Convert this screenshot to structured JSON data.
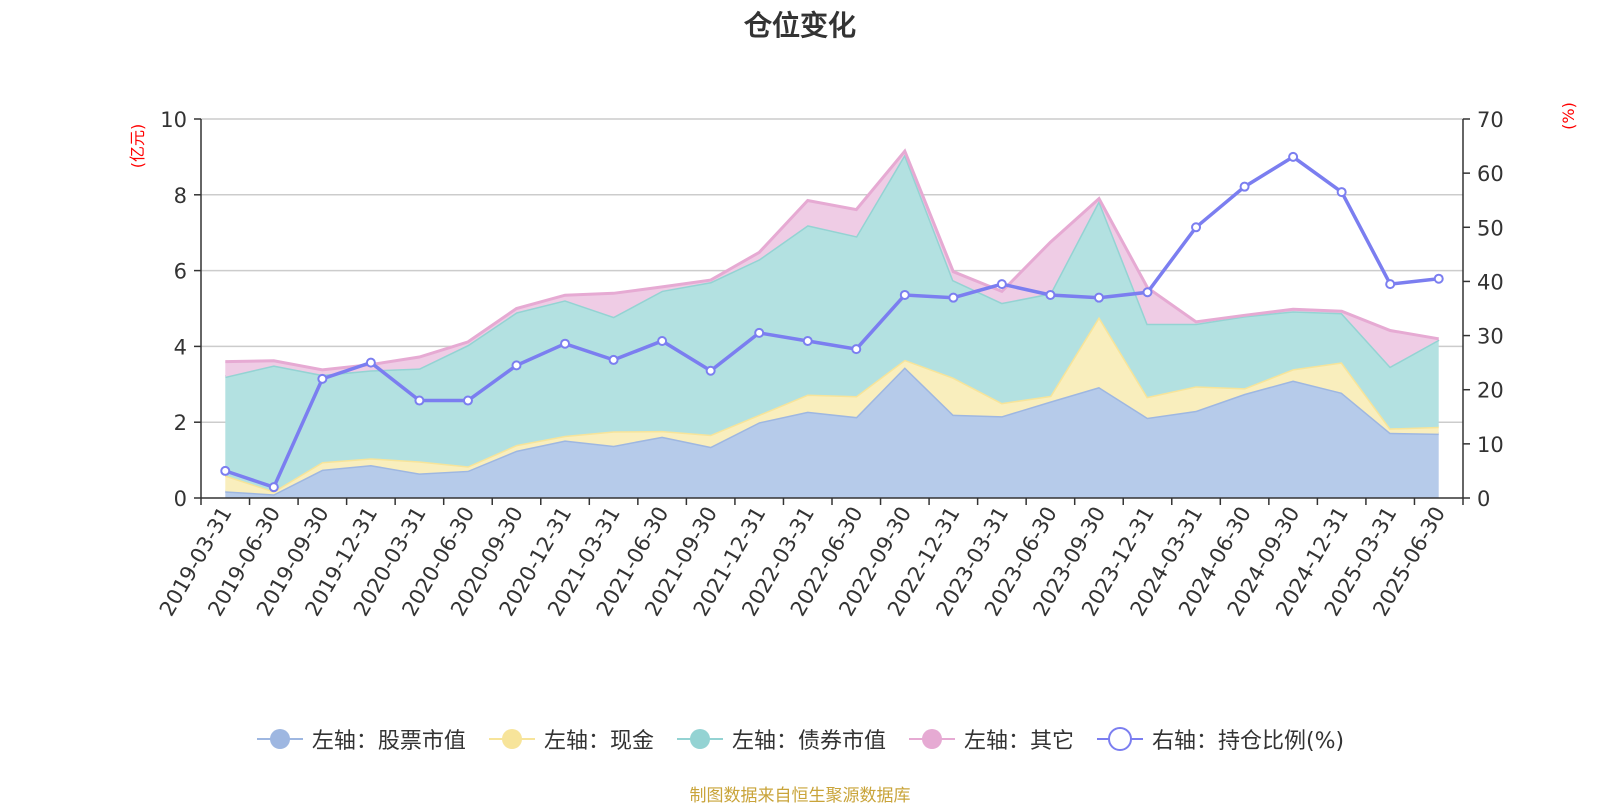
{
  "chart_data": {
    "type": "area",
    "title": "仓位变化",
    "left_unit": "(亿元)",
    "right_unit": "(%)",
    "left_ylim": [
      0,
      10
    ],
    "left_ticks": [
      "0",
      "2",
      "4",
      "6",
      "8",
      "10"
    ],
    "right_ylim": [
      0,
      70
    ],
    "right_ticks": [
      "0",
      "10",
      "20",
      "30",
      "40",
      "50",
      "60",
      "70"
    ],
    "grid": true,
    "stacked": true,
    "legend_position": "bottom",
    "categories": [
      "2019-03-31",
      "2019-06-30",
      "2019-09-30",
      "2019-12-31",
      "2020-03-31",
      "2020-06-30",
      "2020-09-30",
      "2020-12-31",
      "2021-03-31",
      "2021-06-30",
      "2021-09-30",
      "2021-12-31",
      "2022-03-31",
      "2022-06-30",
      "2022-09-30",
      "2022-12-31",
      "2023-03-31",
      "2023-06-30",
      "2023-09-30",
      "2023-12-31",
      "2024-03-31",
      "2024-06-30",
      "2024-09-30",
      "2024-12-31",
      "2025-03-31",
      "2025-06-30"
    ],
    "series": [
      {
        "name": "左轴：股票市值",
        "axis": "left",
        "kind": "area",
        "color": "#9eb7e1",
        "values": [
          0.18,
          0.1,
          0.75,
          0.87,
          0.65,
          0.72,
          1.25,
          1.52,
          1.38,
          1.62,
          1.35,
          2.0,
          2.28,
          2.14,
          3.45,
          2.2,
          2.16,
          2.55,
          2.93,
          2.12,
          2.3,
          2.75,
          3.1,
          2.78,
          1.72,
          1.7
        ]
      },
      {
        "name": "左轴：现金",
        "axis": "left",
        "kind": "area",
        "color": "#f7e49a",
        "values": [
          0.42,
          0.08,
          0.2,
          0.18,
          0.32,
          0.12,
          0.15,
          0.12,
          0.38,
          0.15,
          0.32,
          0.2,
          0.45,
          0.55,
          0.2,
          0.98,
          0.35,
          0.15,
          1.85,
          0.55,
          0.65,
          0.15,
          0.3,
          0.8,
          0.12,
          0.18
        ]
      },
      {
        "name": "左轴：债券市值",
        "axis": "left",
        "kind": "area",
        "color": "#94d3d3",
        "values": [
          2.6,
          3.32,
          2.3,
          2.32,
          2.45,
          3.2,
          3.5,
          3.58,
          3.02,
          3.7,
          4.03,
          4.1,
          4.47,
          4.22,
          5.42,
          2.57,
          2.64,
          2.7,
          3.07,
          1.93,
          1.65,
          1.9,
          1.53,
          1.3,
          1.63,
          2.3
        ]
      },
      {
        "name": "左轴：其它",
        "axis": "left",
        "kind": "area",
        "color": "#e6aad3",
        "values": [
          0.4,
          0.12,
          0.13,
          0.15,
          0.3,
          0.08,
          0.1,
          0.13,
          0.62,
          0.1,
          0.05,
          0.18,
          0.65,
          0.7,
          0.08,
          0.22,
          0.3,
          1.35,
          0.05,
          0.95,
          0.05,
          0.02,
          0.05,
          0.05,
          0.95,
          0.02
        ]
      },
      {
        "name": "右轴：持仓比例(%)",
        "axis": "right",
        "kind": "line",
        "color": "#7b7ef0",
        "values": [
          5.0,
          2.0,
          22.0,
          25.0,
          18.0,
          18.0,
          24.5,
          28.5,
          25.5,
          29.0,
          23.5,
          30.5,
          29.0,
          27.5,
          37.5,
          37.0,
          39.5,
          37.5,
          37.0,
          38.0,
          50.0,
          57.5,
          63.0,
          56.5,
          39.5,
          40.5
        ]
      }
    ]
  },
  "legend": {
    "items": [
      {
        "label": "左轴：股票市值",
        "icon": "filled-circle-icon",
        "color": "#9eb7e1"
      },
      {
        "label": "左轴：现金",
        "icon": "filled-circle-icon",
        "color": "#f7e49a"
      },
      {
        "label": "左轴：债券市值",
        "icon": "filled-circle-icon",
        "color": "#94d3d3"
      },
      {
        "label": "左轴：其它",
        "icon": "filled-circle-icon",
        "color": "#e6aad3"
      },
      {
        "label": "右轴：持仓比例(%)",
        "icon": "hollow-circle-icon",
        "color": "#7b7ef0"
      }
    ]
  },
  "footer": {
    "source": "制图数据来自恒生聚源数据库"
  },
  "colors": {
    "axis": "#333333",
    "grid": "#cccccc",
    "unit": "#ff0000",
    "source": "#c9a43a"
  }
}
